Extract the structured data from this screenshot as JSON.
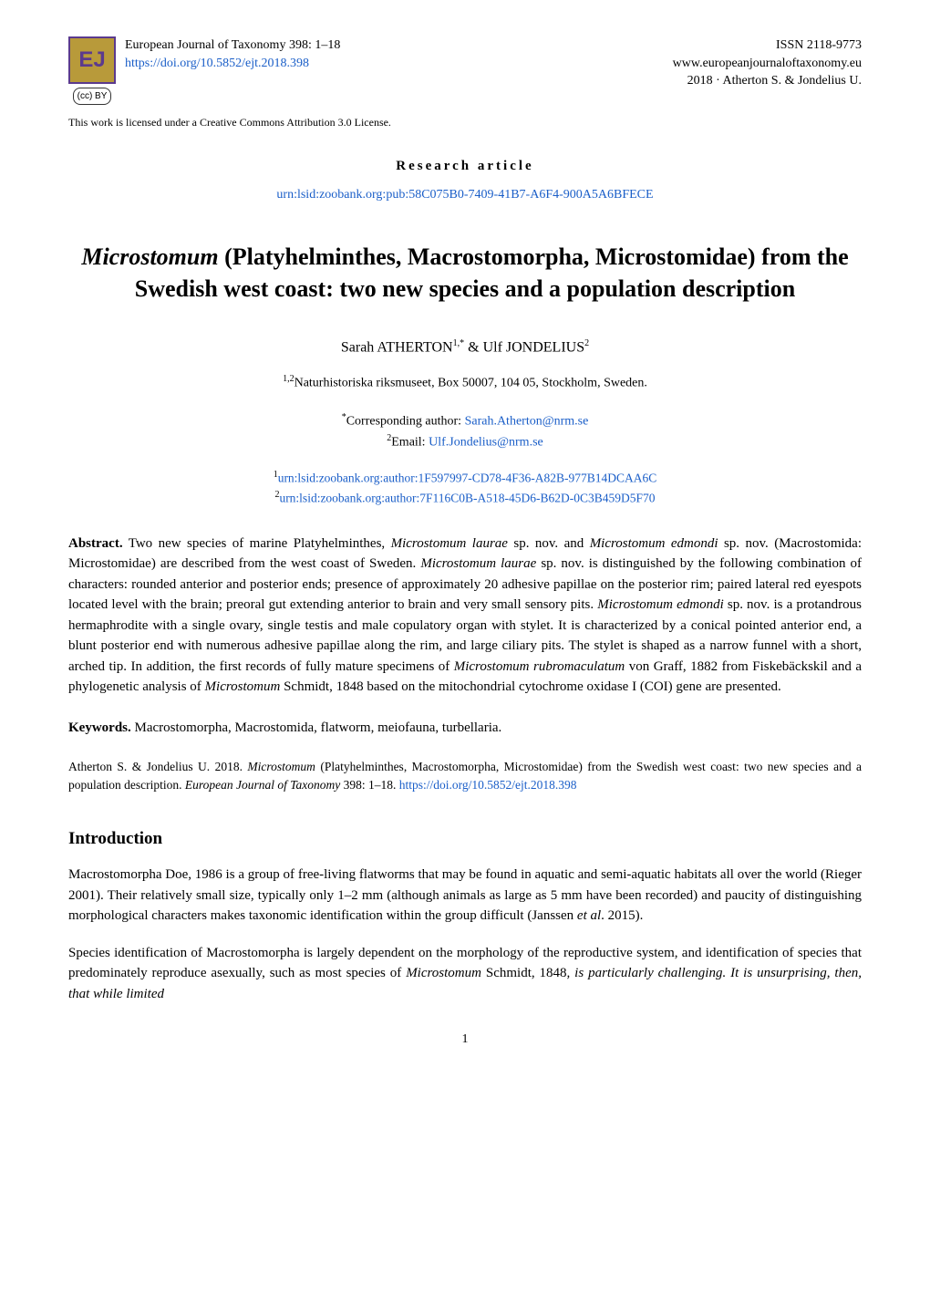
{
  "header": {
    "logo_text": "EJ",
    "cc_badge": "(cc) BY",
    "journal_line": "European Journal of Taxonomy 398: 1–18",
    "doi_link": "https://doi.org/10.5852/ejt.2018.398",
    "issn": "ISSN 2118-9773",
    "site": "www.europeanjournaloftaxonomy.eu",
    "copyright": "2018 · Atherton S. & Jondelius U.",
    "license": "This work is licensed under a Creative Commons Attribution 3.0 License."
  },
  "article_type": "Research article",
  "urn_main": "urn:lsid:zoobank.org:pub:58C075B0-7409-41B7-A6F4-900A5A6BFECE",
  "title": {
    "italic": "Microstomum",
    "rest": " (Platyhelminthes, Macrostomorpha, Microstomidae) from the Swedish west coast: two new species and a population description"
  },
  "authors": {
    "a1_name": "Sarah ATHERTON",
    "a1_sup": "1,*",
    "amp": " & ",
    "a2_name": "Ulf JONDELIUS",
    "a2_sup": "2"
  },
  "affiliation": {
    "sup": "1,2",
    "text": "Naturhistoriska riksmuseet, Box 50007, 104 05, Stockholm, Sweden."
  },
  "corresponding": {
    "line1_sup": "*",
    "line1_label": "Corresponding author: ",
    "line1_email": "Sarah.Atherton@nrm.se",
    "line2_sup": "2",
    "line2_label": "Email: ",
    "line2_email": "Ulf.Jondelius@nrm.se"
  },
  "author_urns": {
    "u1_sup": "1",
    "u1": "urn:lsid:zoobank.org:author:1F597997-CD78-4F36-A82B-977B14DCAA6C",
    "u2_sup": "2",
    "u2": "urn:lsid:zoobank.org:author:7F116C0B-A518-45D6-B62D-0C3B459D5F70"
  },
  "abstract": {
    "label": "Abstract.",
    "p1": " Two new species of marine Platyhelminthes, ",
    "i1": "Microstomum laurae",
    "p2": " sp. nov. and ",
    "i2": "Microstomum edmondi",
    "p3": " sp. nov. (Macrostomida: Microstomidae) are described from the west coast of Sweden. ",
    "i3": "Microstomum laurae",
    "p4": " sp. nov. is distinguished by the following combination of characters: rounded anterior and posterior ends; presence of approximately 20 adhesive papillae on the posterior rim; paired lateral red eyespots located level with the brain; preoral gut extending anterior to brain and very small sensory pits. ",
    "i4": "Microstomum edmondi",
    "p5": " sp. nov. is a protandrous hermaphrodite with a single ovary, single testis and male copulatory organ with stylet. It is characterized by a conical pointed anterior end, a blunt posterior end with numerous adhesive papillae along the rim, and large ciliary pits. The stylet is shaped as a narrow funnel with a short, arched tip. In addition, the first records of fully mature specimens of ",
    "i5": "Microstomum rubromaculatum",
    "p6": " von Graff, 1882 from Fiskebäckskil and a phylogenetic analysis of ",
    "i6": "Microstomum",
    "p7": " Schmidt, 1848 based on the mitochondrial cytochrome oxidase I (COI) gene are presented."
  },
  "keywords": {
    "label": "Keywords.",
    "text": " Macrostomorpha, Macrostomida, flatworm, meiofauna, turbellaria."
  },
  "citation": {
    "p1": "Atherton S. & Jondelius U. 2018. ",
    "i1": "Microstomum",
    "p2": " (Platyhelminthes, Macrostomorpha, Microstomidae) from the Swedish west coast: two new species and a population description. ",
    "i2": "European Journal of Taxonomy",
    "p3": " 398: 1–18. ",
    "link": "https://doi.org/10.5852/ejt.2018.398"
  },
  "intro": {
    "heading": "Introduction",
    "para1_a": "Macrostomorpha Doe, 1986 is a group of free-living flatworms that may be found in aquatic and semi-aquatic habitats all over the world (Rieger 2001). Their relatively small size, typically only 1–2 mm (although animals as large as 5 mm have been recorded) and paucity of distinguishing morphological characters makes taxonomic identification within the group difficult (Janssen ",
    "para1_i": "et al",
    "para1_b": ". 2015).",
    "para2_a": "Species identification of Macrostomorpha is largely dependent on the morphology of the reproductive system, and identification of species that predominately reproduce asexually, such as most species of ",
    "para2_i": "Microstomum",
    "para2_b": " Schmidt, 1848",
    "para2_c": ", is particularly challenging. It is unsurprising, then, that while limited"
  },
  "page_number": "1",
  "colors": {
    "link": "#1a5ec8",
    "logo_bg": "#b89a3a",
    "logo_fg": "#5b3a8e"
  }
}
